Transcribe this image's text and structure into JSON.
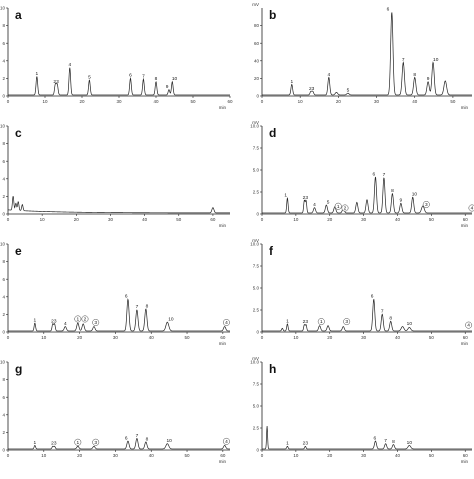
{
  "figure": {
    "panels": [
      "a",
      "b",
      "c",
      "d",
      "e",
      "f",
      "g",
      "h"
    ]
  },
  "chart_data": [
    {
      "panel": "a",
      "type": "line",
      "xlabel": "min",
      "ylabel": "",
      "xlim": [
        0,
        60
      ],
      "ylim": [
        0,
        10
      ],
      "xticks": [
        0,
        10,
        20,
        30,
        40,
        50,
        60
      ],
      "yticks": [
        0,
        2,
        4,
        6,
        8,
        10
      ],
      "grid": false,
      "peaks": [
        {
          "t": 7.8,
          "h": 2.1,
          "w": 0.22
        },
        {
          "t": 12.8,
          "h": 1.2,
          "w": 0.22
        },
        {
          "t": 13.3,
          "h": 1.2,
          "w": 0.22
        },
        {
          "t": 16.7,
          "h": 3.1,
          "w": 0.22
        },
        {
          "t": 22.0,
          "h": 1.7,
          "w": 0.22
        },
        {
          "t": 33.1,
          "h": 1.9,
          "w": 0.22
        },
        {
          "t": 36.6,
          "h": 1.8,
          "w": 0.22
        },
        {
          "t": 40.0,
          "h": 1.5,
          "w": 0.22
        },
        {
          "t": 43.5,
          "h": 0.6,
          "w": 0.22
        },
        {
          "t": 44.4,
          "h": 1.5,
          "w": 0.22
        }
      ],
      "labels": [
        {
          "text": "1",
          "t": 7.8,
          "y": 2.4,
          "circled": false
        },
        {
          "text": "23",
          "t": 13.0,
          "y": 1.5,
          "circled": false
        },
        {
          "text": "4",
          "t": 16.7,
          "y": 3.4,
          "circled": false
        },
        {
          "text": "5",
          "t": 22.0,
          "y": 2.0,
          "circled": false
        },
        {
          "text": "6",
          "t": 33.1,
          "y": 2.2,
          "circled": false
        },
        {
          "text": "7",
          "t": 36.6,
          "y": 2.1,
          "circled": false
        },
        {
          "text": "8",
          "t": 40.0,
          "y": 1.8,
          "circled": false
        },
        {
          "text": "9",
          "t": 43.0,
          "y": 0.9,
          "circled": false
        },
        {
          "text": "10",
          "t": 45.0,
          "y": 1.8,
          "circled": false
        }
      ]
    },
    {
      "panel": "b",
      "type": "line",
      "xlabel": "min",
      "ylabel": "mV",
      "xlim": [
        0,
        55
      ],
      "ylim": [
        0,
        100
      ],
      "xticks": [
        0,
        10,
        20,
        30,
        40,
        50
      ],
      "yticks": [
        0,
        20,
        40,
        60,
        80
      ],
      "grid": false,
      "peaks": [
        {
          "t": 7.8,
          "h": 12,
          "w": 0.22
        },
        {
          "t": 12.8,
          "h": 4,
          "w": 0.22
        },
        {
          "t": 13.3,
          "h": 4,
          "w": 0.22
        },
        {
          "t": 17.5,
          "h": 20,
          "w": 0.25
        },
        {
          "t": 19.5,
          "h": 3,
          "w": 0.3
        },
        {
          "t": 22.5,
          "h": 2,
          "w": 0.3
        },
        {
          "t": 34.0,
          "h": 94,
          "w": 0.3
        },
        {
          "t": 37.0,
          "h": 37,
          "w": 0.3
        },
        {
          "t": 40.0,
          "h": 20,
          "w": 0.3
        },
        {
          "t": 43.5,
          "h": 15,
          "w": 0.3
        },
        {
          "t": 44.8,
          "h": 37,
          "w": 0.3
        },
        {
          "t": 48.0,
          "h": 16,
          "w": 0.35
        }
      ],
      "labels": [
        {
          "text": "1",
          "t": 7.8,
          "y": 15,
          "circled": false
        },
        {
          "text": "23",
          "t": 13.0,
          "y": 7,
          "circled": false
        },
        {
          "text": "4",
          "t": 17.5,
          "y": 23,
          "circled": false
        },
        {
          "text": "5",
          "t": 22.5,
          "y": 5,
          "circled": false
        },
        {
          "text": "6",
          "t": 33.0,
          "y": 97,
          "circled": false
        },
        {
          "text": "7",
          "t": 37.0,
          "y": 40,
          "circled": false
        },
        {
          "text": "8",
          "t": 40.0,
          "y": 23,
          "circled": false
        },
        {
          "text": "9",
          "t": 43.5,
          "y": 18,
          "circled": false
        },
        {
          "text": "10",
          "t": 45.5,
          "y": 40,
          "circled": false
        }
      ]
    },
    {
      "panel": "c",
      "type": "line",
      "xlabel": "min",
      "ylabel": "",
      "xlim": [
        0,
        65
      ],
      "ylim": [
        0,
        10
      ],
      "xticks": [
        0,
        10,
        20,
        30,
        40,
        50,
        60
      ],
      "yticks": [
        0,
        2,
        4,
        6,
        8,
        10
      ],
      "grid": false,
      "baseline_drift": true,
      "peaks": [
        {
          "t": 1.5,
          "h": 1.6,
          "w": 0.2
        },
        {
          "t": 2.3,
          "h": 0.8,
          "w": 0.2
        },
        {
          "t": 3.0,
          "h": 1.0,
          "w": 0.2
        },
        {
          "t": 4.2,
          "h": 0.7,
          "w": 0.2
        },
        {
          "t": 60.0,
          "h": 0.6,
          "w": 0.3
        }
      ],
      "labels": []
    },
    {
      "panel": "d",
      "type": "line",
      "xlabel": "min",
      "ylabel": "mV",
      "xlim": [
        0,
        62
      ],
      "ylim": [
        0,
        10
      ],
      "xticks": [
        0,
        10,
        20,
        30,
        40,
        50,
        60
      ],
      "yticks": [
        0,
        2.5,
        5.0,
        7.5,
        10.0
      ],
      "ytick_labels": [
        "0",
        "2.5",
        "5.0",
        "7.5",
        "10.0"
      ],
      "grid": false,
      "peaks": [
        {
          "t": 7.5,
          "h": 1.7,
          "w": 0.2
        },
        {
          "t": 12.5,
          "h": 1.4,
          "w": 0.2
        },
        {
          "t": 13.0,
          "h": 1.4,
          "w": 0.2
        },
        {
          "t": 15.5,
          "h": 0.6,
          "w": 0.3
        },
        {
          "t": 19.0,
          "h": 0.9,
          "w": 0.3
        },
        {
          "t": 21.5,
          "h": 0.7,
          "w": 0.3
        },
        {
          "t": 24.0,
          "h": 0.5,
          "w": 0.3
        },
        {
          "t": 28.0,
          "h": 1.2,
          "w": 0.3
        },
        {
          "t": 31.0,
          "h": 1.5,
          "w": 0.3
        },
        {
          "t": 33.5,
          "h": 4.1,
          "w": 0.3
        },
        {
          "t": 36.0,
          "h": 4.0,
          "w": 0.3
        },
        {
          "t": 38.5,
          "h": 2.2,
          "w": 0.3
        },
        {
          "t": 41.0,
          "h": 1.1,
          "w": 0.3
        },
        {
          "t": 44.5,
          "h": 1.8,
          "w": 0.3
        },
        {
          "t": 47.5,
          "h": 0.8,
          "w": 0.4
        }
      ],
      "labels": [
        {
          "text": "1",
          "t": 7.0,
          "y": 2.0,
          "circled": false
        },
        {
          "text": "23",
          "t": 12.8,
          "y": 1.7,
          "circled": false
        },
        {
          "text": "4",
          "t": 15.5,
          "y": 0.9,
          "circled": false
        },
        {
          "text": "5",
          "t": 19.5,
          "y": 1.2,
          "circled": false
        },
        {
          "text": "6",
          "t": 33.0,
          "y": 4.4,
          "circled": false
        },
        {
          "text": "7",
          "t": 36.0,
          "y": 4.3,
          "circled": false
        },
        {
          "text": "8",
          "t": 38.5,
          "y": 2.5,
          "circled": false
        },
        {
          "text": "9",
          "t": 41.0,
          "y": 1.4,
          "circled": false
        },
        {
          "text": "10",
          "t": 45.0,
          "y": 2.1,
          "circled": false
        },
        {
          "text": "1",
          "t": 22.5,
          "y": 0.7,
          "circled": true
        },
        {
          "text": "2",
          "t": 24.5,
          "y": 0.5,
          "circled": true
        },
        {
          "text": "3",
          "t": 48.5,
          "y": 0.9,
          "circled": true
        },
        {
          "text": "4",
          "t": 62.0,
          "y": 0.5,
          "circled": true
        }
      ]
    },
    {
      "panel": "e",
      "type": "line",
      "xlabel": "min",
      "ylabel": "",
      "xlim": [
        0,
        62
      ],
      "ylim": [
        0,
        10
      ],
      "xticks": [
        0,
        10,
        20,
        30,
        40,
        50,
        60
      ],
      "yticks": [
        0,
        2,
        4,
        6,
        8,
        10
      ],
      "grid": false,
      "peaks": [
        {
          "t": 7.5,
          "h": 0.9,
          "w": 0.2
        },
        {
          "t": 12.5,
          "h": 0.8,
          "w": 0.2
        },
        {
          "t": 13.0,
          "h": 0.8,
          "w": 0.2
        },
        {
          "t": 16.0,
          "h": 0.5,
          "w": 0.3
        },
        {
          "t": 19.5,
          "h": 0.9,
          "w": 0.3
        },
        {
          "t": 21.0,
          "h": 0.8,
          "w": 0.3
        },
        {
          "t": 24.0,
          "h": 0.5,
          "w": 0.3
        },
        {
          "t": 33.5,
          "h": 3.6,
          "w": 0.3
        },
        {
          "t": 36.0,
          "h": 2.4,
          "w": 0.3
        },
        {
          "t": 38.5,
          "h": 2.5,
          "w": 0.3
        },
        {
          "t": 44.5,
          "h": 1.0,
          "w": 0.4
        },
        {
          "t": 60.5,
          "h": 0.5,
          "w": 0.3
        }
      ],
      "labels": [
        {
          "text": "1",
          "t": 7.5,
          "y": 1.2,
          "circled": false
        },
        {
          "text": "23",
          "t": 12.8,
          "y": 1.1,
          "circled": false
        },
        {
          "text": "4",
          "t": 16.0,
          "y": 0.8,
          "circled": false
        },
        {
          "text": "6",
          "t": 33.0,
          "y": 3.9,
          "circled": false
        },
        {
          "text": "7",
          "t": 36.0,
          "y": 2.7,
          "circled": false
        },
        {
          "text": "8",
          "t": 38.8,
          "y": 2.8,
          "circled": false
        },
        {
          "text": "10",
          "t": 45.5,
          "y": 1.3,
          "circled": false
        },
        {
          "text": "1",
          "t": 19.5,
          "y": 1.3,
          "circled": true
        },
        {
          "text": "2",
          "t": 21.5,
          "y": 1.3,
          "circled": true
        },
        {
          "text": "3",
          "t": 24.5,
          "y": 0.9,
          "circled": true
        },
        {
          "text": "4",
          "t": 61.0,
          "y": 0.9,
          "circled": true
        }
      ]
    },
    {
      "panel": "f",
      "type": "line",
      "xlabel": "min",
      "ylabel": "mV",
      "xlim": [
        0,
        62
      ],
      "ylim": [
        0,
        10
      ],
      "xticks": [
        0,
        10,
        20,
        30,
        40,
        50,
        60
      ],
      "yticks": [
        0,
        2.5,
        5.0,
        7.5,
        10.0
      ],
      "ytick_labels": [
        "0",
        "2.5",
        "5.0",
        "7.5",
        "10.0"
      ],
      "grid": false,
      "peaks": [
        {
          "t": 6.0,
          "h": 0.3,
          "w": 0.2
        },
        {
          "t": 7.5,
          "h": 0.8,
          "w": 0.2
        },
        {
          "t": 12.5,
          "h": 0.7,
          "w": 0.2
        },
        {
          "t": 13.0,
          "h": 0.7,
          "w": 0.2
        },
        {
          "t": 17.0,
          "h": 0.6,
          "w": 0.3
        },
        {
          "t": 19.5,
          "h": 0.6,
          "w": 0.3
        },
        {
          "t": 24.0,
          "h": 0.5,
          "w": 0.3
        },
        {
          "t": 33.0,
          "h": 3.6,
          "w": 0.3
        },
        {
          "t": 35.5,
          "h": 1.9,
          "w": 0.3
        },
        {
          "t": 38.0,
          "h": 1.1,
          "w": 0.3
        },
        {
          "t": 41.5,
          "h": 0.5,
          "w": 0.4
        },
        {
          "t": 43.5,
          "h": 0.4,
          "w": 0.4
        }
      ],
      "labels": [
        {
          "text": "1",
          "t": 7.5,
          "y": 1.1,
          "circled": false
        },
        {
          "text": "23",
          "t": 12.8,
          "y": 1.0,
          "circled": false
        },
        {
          "text": "6",
          "t": 32.5,
          "y": 3.9,
          "circled": false
        },
        {
          "text": "7",
          "t": 35.5,
          "y": 2.2,
          "circled": false
        },
        {
          "text": "8",
          "t": 38.0,
          "y": 1.4,
          "circled": false
        },
        {
          "text": "10",
          "t": 43.5,
          "y": 0.8,
          "circled": false
        },
        {
          "text": "1",
          "t": 17.5,
          "y": 1.0,
          "circled": true
        },
        {
          "text": "3",
          "t": 25.0,
          "y": 1.0,
          "circled": true
        },
        {
          "text": "4",
          "t": 61.0,
          "y": 0.6,
          "circled": true
        }
      ]
    },
    {
      "panel": "g",
      "type": "line",
      "xlabel": "min",
      "ylabel": "",
      "xlim": [
        0,
        62
      ],
      "ylim": [
        0,
        10
      ],
      "xticks": [
        0,
        10,
        20,
        30,
        40,
        50,
        60
      ],
      "yticks": [
        0,
        2,
        4,
        6,
        8,
        10
      ],
      "grid": false,
      "peaks": [
        {
          "t": 7.5,
          "h": 0.4,
          "w": 0.2
        },
        {
          "t": 12.5,
          "h": 0.3,
          "w": 0.2
        },
        {
          "t": 13.0,
          "h": 0.3,
          "w": 0.2
        },
        {
          "t": 19.5,
          "h": 0.3,
          "w": 0.3
        },
        {
          "t": 24.0,
          "h": 0.3,
          "w": 0.3
        },
        {
          "t": 33.5,
          "h": 0.9,
          "w": 0.3
        },
        {
          "t": 36.0,
          "h": 1.2,
          "w": 0.3
        },
        {
          "t": 38.5,
          "h": 0.8,
          "w": 0.3
        },
        {
          "t": 44.5,
          "h": 0.6,
          "w": 0.4
        },
        {
          "t": 60.5,
          "h": 0.4,
          "w": 0.3
        }
      ],
      "labels": [
        {
          "text": "1",
          "t": 7.5,
          "y": 0.7,
          "circled": false
        },
        {
          "text": "23",
          "t": 12.8,
          "y": 0.6,
          "circled": false
        },
        {
          "text": "6",
          "t": 33.0,
          "y": 1.2,
          "circled": false
        },
        {
          "text": "7",
          "t": 36.0,
          "y": 1.5,
          "circled": false
        },
        {
          "text": "8",
          "t": 38.8,
          "y": 1.1,
          "circled": false
        },
        {
          "text": "10",
          "t": 45.0,
          "y": 0.9,
          "circled": false
        },
        {
          "text": "1",
          "t": 19.5,
          "y": 0.7,
          "circled": true
        },
        {
          "text": "3",
          "t": 24.5,
          "y": 0.7,
          "circled": true
        },
        {
          "text": "4",
          "t": 61.0,
          "y": 0.8,
          "circled": true
        }
      ]
    },
    {
      "panel": "h",
      "type": "line",
      "xlabel": "min",
      "ylabel": "mV",
      "xlim": [
        0,
        62
      ],
      "ylim": [
        0,
        10
      ],
      "xticks": [
        0,
        10,
        20,
        30,
        40,
        50,
        60
      ],
      "yticks": [
        0,
        2.5,
        5.0,
        7.5,
        10.0
      ],
      "ytick_labels": [
        "0",
        "2.5",
        "5.0",
        "7.5",
        "10.0"
      ],
      "grid": false,
      "peaks": [
        {
          "t": 1.5,
          "h": 2.6,
          "w": 0.15
        },
        {
          "t": 7.5,
          "h": 0.3,
          "w": 0.2
        },
        {
          "t": 12.8,
          "h": 0.3,
          "w": 0.2
        },
        {
          "t": 33.5,
          "h": 0.9,
          "w": 0.3
        },
        {
          "t": 36.5,
          "h": 0.6,
          "w": 0.3
        },
        {
          "t": 38.8,
          "h": 0.5,
          "w": 0.3
        },
        {
          "t": 43.5,
          "h": 0.4,
          "w": 0.4
        }
      ],
      "labels": [
        {
          "text": "1",
          "t": 7.5,
          "y": 0.6,
          "circled": false
        },
        {
          "text": "23",
          "t": 12.8,
          "y": 0.6,
          "circled": false
        },
        {
          "text": "6",
          "t": 33.3,
          "y": 1.2,
          "circled": false
        },
        {
          "text": "7",
          "t": 36.5,
          "y": 0.9,
          "circled": false
        },
        {
          "text": "8",
          "t": 38.8,
          "y": 0.8,
          "circled": false
        },
        {
          "text": "10",
          "t": 43.5,
          "y": 0.7,
          "circled": false
        }
      ]
    }
  ]
}
